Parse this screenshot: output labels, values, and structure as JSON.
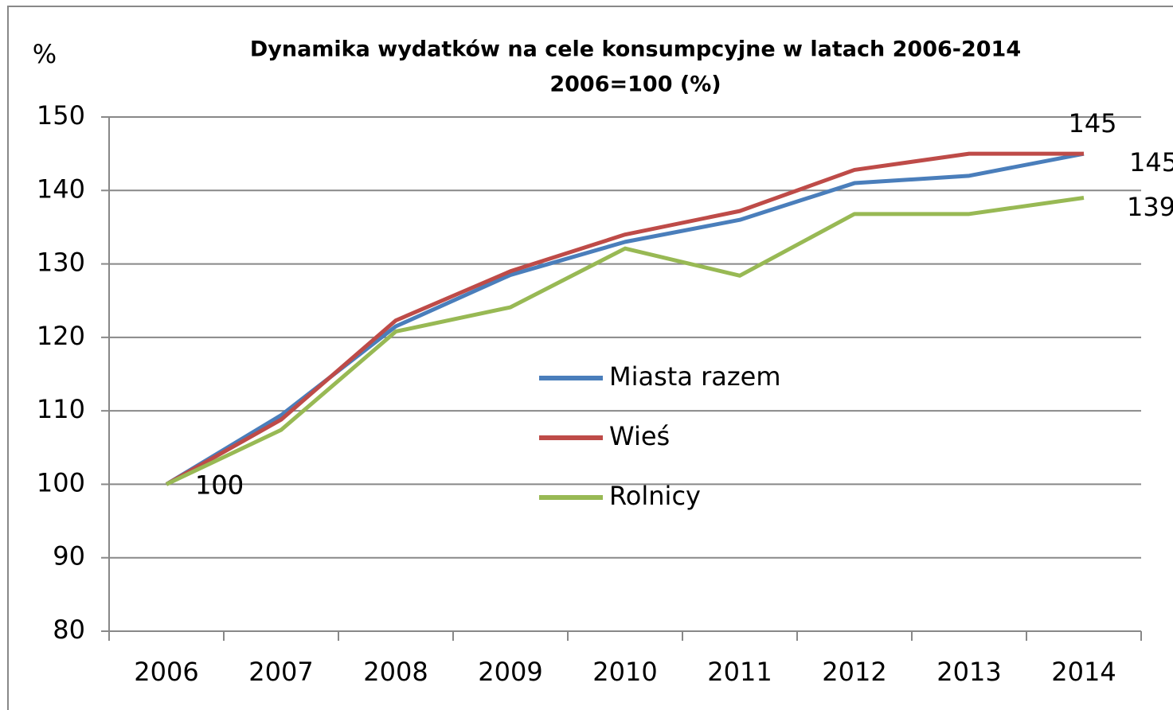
{
  "chart_data": {
    "type": "line",
    "title": "Dynamika wydatków na cele konsumpcyjne  w latach 2006-2014",
    "subtitle": "2006=100 (%)",
    "y_label": "%",
    "categories": [
      "2006",
      "2007",
      "2008",
      "2009",
      "2010",
      "2011",
      "2012",
      "2013",
      "2014"
    ],
    "series": [
      {
        "name": "Miasta razem",
        "color": "#4a7ebb",
        "values": [
          100,
          109.4,
          121.5,
          128.5,
          133,
          136,
          141,
          142,
          145
        ],
        "value_labels": [
          "100",
          null,
          null,
          null,
          null,
          null,
          null,
          null,
          "145"
        ]
      },
      {
        "name": "Wieś",
        "color": "#be4b48",
        "values": [
          100,
          108.8,
          122.3,
          129,
          134,
          137.2,
          142.8,
          145,
          145
        ],
        "value_labels": [
          "100",
          null,
          null,
          null,
          null,
          null,
          null,
          null,
          "145"
        ]
      },
      {
        "name": "Rolnicy",
        "color": "#98b954",
        "values": [
          100,
          107.4,
          120.8,
          124.1,
          132.1,
          128.4,
          136.8,
          136.8,
          139
        ],
        "value_labels": [
          "100",
          null,
          null,
          null,
          null,
          null,
          null,
          null,
          "139"
        ]
      }
    ],
    "ylim": [
      80,
      150
    ],
    "yticks": [
      80,
      90,
      100,
      110,
      120,
      130,
      140,
      150
    ],
    "grid": true,
    "legend": "center"
  }
}
